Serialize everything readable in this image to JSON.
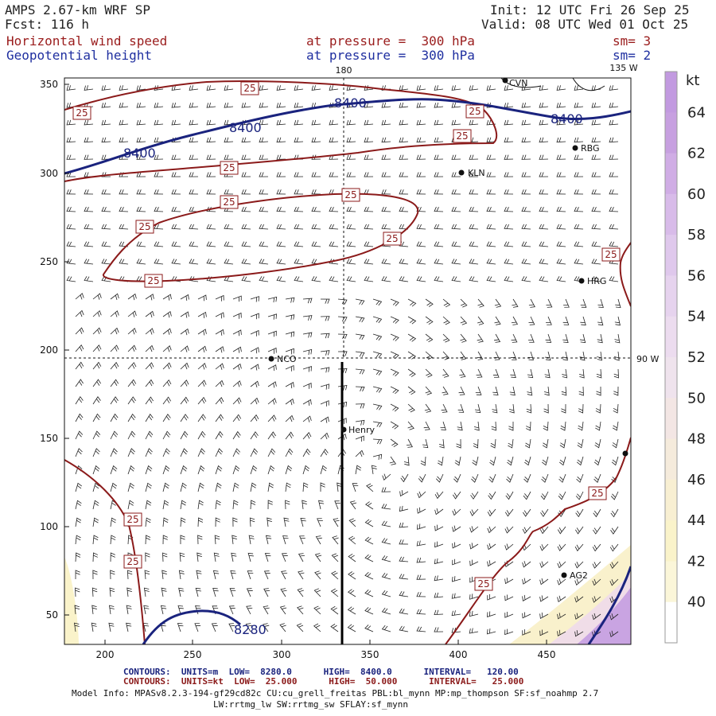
{
  "header": {
    "model": "AMPS 2.67-km WRF SP",
    "fcst": "Fcst: 116 h",
    "init": "Init: 12 UTC Fri 26 Sep 25",
    "valid": "Valid: 08 UTC Wed 01 Oct 25",
    "field1_name": "Horizontal wind speed",
    "field1_level": "at pressure =  300 hPa",
    "field1_sm": "sm= 3",
    "field2_name": "Geopotential height",
    "field2_level": "at pressure =  300 hPa",
    "field2_sm": "sm= 2"
  },
  "map": {
    "lon_labels": {
      "top_180": "180",
      "top_135w": "135 W",
      "right_90w": "90 W"
    },
    "x_ticks": [
      "200",
      "250",
      "300",
      "350",
      "400",
      "450"
    ],
    "y_ticks": [
      "350",
      "300",
      "250",
      "200",
      "150",
      "100",
      "50"
    ],
    "stations": [
      {
        "id": "CVN",
        "label": "CVN"
      },
      {
        "id": "RBG",
        "label": "RBG"
      },
      {
        "id": "KLN",
        "label": "KLN"
      },
      {
        "id": "HRG",
        "label": "HRG"
      },
      {
        "id": "NCO",
        "label": "NCO"
      },
      {
        "id": "Henry",
        "label": "Henry"
      },
      {
        "id": "AG2",
        "label": "AG2"
      },
      {
        "id": "E",
        "label": ""
      }
    ],
    "height_contour_labels": [
      "8400",
      "8400",
      "8400",
      "8400",
      "8280"
    ],
    "speed_contour_label": "25"
  },
  "colorbar": {
    "unit": "kt",
    "ticks": [
      "64",
      "62",
      "60",
      "58",
      "56",
      "54",
      "52",
      "50",
      "48",
      "46",
      "44",
      "42",
      "40"
    ],
    "colors": [
      "#c7a0e0",
      "#d0ade5",
      "#d8bbe9",
      "#dfc8ec",
      "#e6d3ee",
      "#ecdcef",
      "#efe3ed",
      "#f3e6e4",
      "#f5ebdc",
      "#f8efd2",
      "#faf3ca",
      "#fbf6d9",
      "#ffffff"
    ]
  },
  "footer": {
    "line1": "CONTOURS:  UNITS=m  LOW=  8280.0      HIGH=  8400.0      INTERVAL=   120.00",
    "line2": "CONTOURS:  UNITS=kt  LOW=  25.000      HIGH=  50.000      INTERVAL=   25.000",
    "model_info": "Model Info: MPASv8.2.3-194-gf29cd82c CU:cu_grell_freitas PBL:bl_mynn MP:mp_thompson SF:sf_noahmp 2.7",
    "model_info2": "LW:rrtmg_lw SW:rrtmg_sw SFLAY:sf_mynn"
  }
}
